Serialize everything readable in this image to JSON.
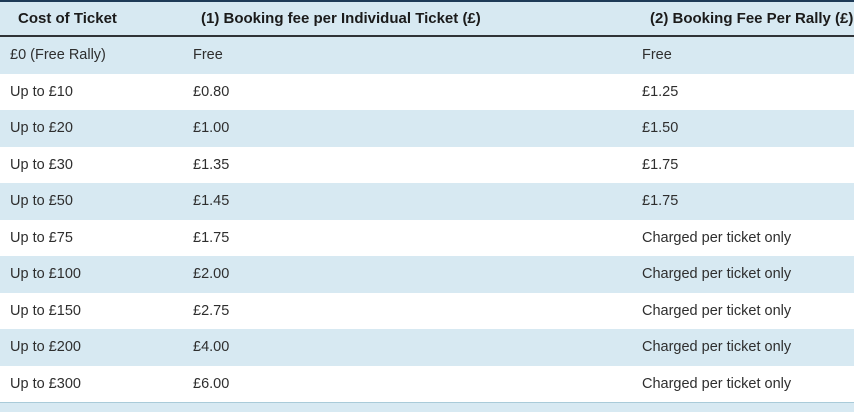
{
  "table": {
    "columns": [
      {
        "label": "Cost of Ticket"
      },
      {
        "label": "(1) Booking fee per Individual Ticket (£)"
      },
      {
        "label": "(2) Booking Fee Per Rally (£)"
      }
    ],
    "rows": [
      {
        "cost": "£0 (Free Rally)",
        "individual_fee": "Free",
        "rally_fee": "Free"
      },
      {
        "cost": "Up to £10",
        "individual_fee": "£0.80",
        "rally_fee": "£1.25"
      },
      {
        "cost": "Up to £20",
        "individual_fee": "£1.00",
        "rally_fee": "£1.50"
      },
      {
        "cost": "Up to £30",
        "individual_fee": "£1.35",
        "rally_fee": "£1.75"
      },
      {
        "cost": "Up to £50",
        "individual_fee": "£1.45",
        "rally_fee": "£1.75"
      },
      {
        "cost": "Up to £75",
        "individual_fee": "£1.75",
        "rally_fee": "Charged per ticket only"
      },
      {
        "cost": "Up to £100",
        "individual_fee": "£2.00",
        "rally_fee": "Charged per ticket only"
      },
      {
        "cost": "Up to £150",
        "individual_fee": "£2.75",
        "rally_fee": "Charged per ticket only"
      },
      {
        "cost": "Up to £200",
        "individual_fee": "£4.00",
        "rally_fee": "Charged per ticket only"
      },
      {
        "cost": "Up to £300",
        "individual_fee": "£6.00",
        "rally_fee": "Charged per ticket only"
      }
    ],
    "striping": {
      "first_row_shade": "blue",
      "pattern": "alternating",
      "partial_next_row_visible_at_bottom": true
    },
    "colors": {
      "stripe_blue": "#d7e9f2",
      "row_white": "#ffffff",
      "top_border": "#1e3b57",
      "header_underline": "#2f3337",
      "partial_row_separator": "#a9cbd9",
      "body_text": "#2e2e2e",
      "header_text": "#1b1b1b"
    }
  }
}
